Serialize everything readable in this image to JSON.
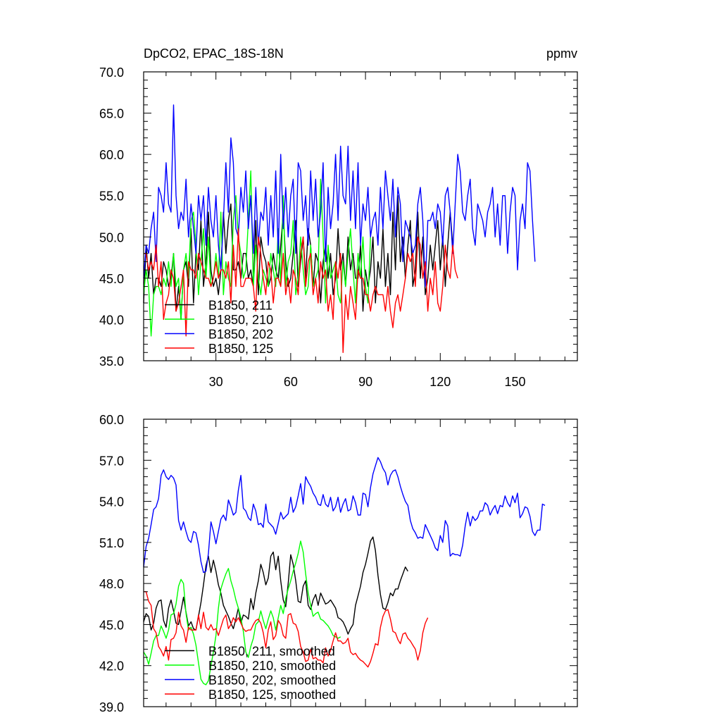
{
  "chart_data": [
    {
      "type": "line",
      "title_left": "DpCO2, EPAC_18S-18N",
      "title_right": "ppmv",
      "xlabel": "",
      "ylabel": "",
      "xlim": [
        1,
        175
      ],
      "ylim": [
        35,
        70
      ],
      "x_ticks": [
        30,
        60,
        90,
        120,
        150
      ],
      "x_tick_labels": [
        "30",
        "60",
        "90",
        "120",
        "150"
      ],
      "y_ticks": [
        35,
        40,
        45,
        50,
        55,
        60,
        65,
        70
      ],
      "y_tick_labels": [
        "35.0",
        "40.0",
        "45.0",
        "50.0",
        "55.0",
        "60.0",
        "65.0",
        "70.0"
      ],
      "legend_location": "lower-left",
      "series": [
        {
          "name": "B1850, 211",
          "color": "#000000",
          "x_start": 1,
          "values": [
            42,
            49,
            45,
            48,
            43,
            45,
            45,
            44,
            47,
            46,
            44,
            45,
            48,
            41,
            44,
            40,
            46,
            47,
            44,
            51,
            42,
            48,
            46,
            52,
            44,
            47,
            53,
            46,
            44,
            45,
            43,
            46,
            53,
            48,
            52,
            54,
            46,
            46,
            47,
            45,
            48,
            48,
            45,
            46,
            44,
            52,
            43,
            50,
            48,
            47,
            44,
            45,
            48,
            46,
            45,
            49,
            53,
            47,
            44,
            45,
            48,
            52,
            44,
            47,
            50,
            45,
            51,
            49,
            44,
            48,
            47,
            42,
            47,
            49,
            45,
            48,
            43,
            45,
            51,
            46,
            48,
            44,
            50,
            46,
            48,
            45,
            45,
            49,
            41,
            46,
            44,
            46,
            50,
            42,
            47,
            45,
            51,
            44,
            48,
            43,
            53,
            46,
            55,
            47,
            50,
            45,
            49,
            52,
            44,
            46,
            53,
            45,
            50,
            43,
            45,
            49,
            46,
            49,
            52,
            46,
            50,
            44,
            49,
            53,
            49
          ]
        },
        {
          "name": "B1850, 210",
          "color": "#00ff00",
          "x_start": 1,
          "values": [
            43,
            46,
            44,
            38,
            43,
            44,
            44,
            43,
            45,
            44,
            47,
            44,
            48,
            44,
            45,
            40,
            46,
            48,
            45,
            52,
            53,
            49,
            43,
            47,
            51,
            45,
            50,
            44,
            45,
            48,
            45,
            53,
            43,
            47,
            45,
            44,
            52,
            55,
            50,
            48,
            45,
            46,
            52,
            58,
            44,
            49,
            45,
            43,
            46,
            45,
            44,
            48,
            46,
            44,
            51,
            44,
            55,
            44,
            47,
            48,
            52,
            43,
            45,
            50,
            46,
            43,
            44,
            49,
            44,
            45,
            46,
            57,
            50,
            42,
            49,
            45,
            46,
            47,
            43,
            42,
            47,
            44,
            48,
            51,
            46,
            42,
            48,
            45,
            50,
            44,
            42,
            50
          ]
        },
        {
          "name": "B1850, 202",
          "color": "#0000ff",
          "x_start": 1,
          "values": [
            45,
            49,
            48,
            51,
            53,
            47,
            56,
            55,
            53,
            59,
            54,
            53,
            66,
            55,
            51,
            53,
            52,
            57,
            50,
            54,
            51,
            48,
            55,
            52,
            55,
            49,
            56,
            52,
            50,
            55,
            49,
            46,
            52,
            59,
            53,
            62,
            59,
            51,
            50,
            56,
            53,
            58,
            51,
            55,
            48,
            56,
            49,
            53,
            52,
            56,
            49,
            55,
            50,
            58,
            48,
            60,
            51,
            56,
            50,
            55,
            57,
            48,
            59,
            58,
            52,
            55,
            49,
            58,
            52,
            57,
            50,
            53,
            59,
            47,
            56,
            51,
            54,
            60,
            52,
            61,
            55,
            54,
            61,
            52,
            58,
            51,
            59,
            49,
            54,
            52,
            56,
            50,
            52,
            53,
            49,
            56,
            51,
            58,
            55,
            52,
            57,
            50,
            56,
            54,
            47,
            52,
            51,
            50,
            48,
            49,
            54,
            56,
            52,
            44,
            52,
            52,
            53,
            51,
            54,
            53,
            49,
            55,
            56,
            53,
            48,
            54,
            60,
            58,
            53,
            52,
            55,
            57,
            51,
            49,
            54,
            53,
            52,
            50,
            53,
            54,
            56,
            50,
            54,
            49,
            55,
            55,
            48,
            53,
            56,
            55,
            46,
            52,
            54,
            51,
            59,
            58,
            52,
            47
          ]
        },
        {
          "name": "B1850, 125",
          "color": "#ff0000",
          "x_start": 1,
          "values": [
            48,
            48,
            46,
            47,
            46,
            49,
            44,
            47,
            40,
            42,
            43,
            46,
            45,
            41,
            42,
            44,
            46,
            38,
            47,
            46,
            46,
            45,
            48,
            47,
            46,
            45,
            45,
            44,
            45,
            47,
            45,
            46,
            46,
            45,
            47,
            42,
            49,
            44,
            51,
            44,
            44,
            45,
            45,
            45,
            44,
            41,
            50,
            48,
            45,
            43,
            47,
            46,
            42,
            45,
            45,
            44,
            48,
            43,
            45,
            42,
            46,
            45,
            43,
            48,
            50,
            44,
            47,
            48,
            43,
            45,
            42,
            47,
            45,
            46,
            41,
            43,
            40,
            47,
            45,
            48,
            36,
            43,
            40,
            44,
            42,
            40,
            46,
            45,
            45,
            43,
            43,
            41,
            43,
            44,
            43,
            43,
            43,
            41,
            44,
            41,
            39,
            42,
            43,
            41,
            43,
            45,
            48,
            47,
            48,
            44,
            50,
            49,
            45,
            47,
            41,
            45,
            43,
            47,
            42,
            41,
            44,
            49,
            46,
            45,
            49,
            46,
            45
          ]
        }
      ]
    },
    {
      "type": "line",
      "title_left": "",
      "title_right": "",
      "xlabel": "",
      "ylabel": "",
      "xlim": [
        1,
        175
      ],
      "ylim": [
        39,
        60
      ],
      "x_ticks": [
        30,
        60,
        90,
        120,
        150
      ],
      "x_tick_labels": [],
      "y_ticks": [
        39,
        42,
        45,
        48,
        51,
        54,
        57,
        60
      ],
      "y_tick_labels": [
        "39.0",
        "42.0",
        "45.0",
        "48.0",
        "51.0",
        "54.0",
        "57.0",
        "60.0"
      ],
      "legend_location": "lower-left",
      "series": [
        {
          "name": "B1850, 211, smoothed",
          "color": "#000000",
          "x_start": 1,
          "values": [
            45.2,
            45.8,
            45.6,
            44.6,
            45.1,
            46.2,
            46.7,
            46.8,
            45.3,
            44.8,
            46.2,
            46.8,
            46.0,
            45.1,
            45.0,
            46.0,
            47.0,
            45.9,
            44.9,
            45.2,
            44.7,
            44.6,
            45.6,
            46.6,
            47.9,
            49.3,
            50.0,
            48.8,
            49.7,
            48.9,
            47.9,
            47.3,
            46.4,
            46.0,
            45.6,
            45.1,
            44.7,
            45.4,
            46.2,
            45.1,
            45.7,
            45.6,
            45.4,
            46.9,
            46.1,
            47.3,
            48.2,
            49.4,
            48.8,
            47.9,
            48.4,
            50.0,
            50.3,
            49.0,
            50.0,
            48.2,
            46.8,
            46.3,
            48.0,
            50.1,
            49.4,
            48.2,
            46.7,
            46.6,
            47.8,
            48.2,
            46.4,
            46.1,
            46.8,
            47.2,
            46.4,
            47.3,
            46.9,
            46.5,
            46.6,
            46.8,
            46.5,
            46.2,
            45.5,
            45.4,
            45.2,
            44.8,
            44.3,
            44.7,
            45.0,
            46.4,
            47.1,
            47.8,
            48.8,
            49.4,
            50.2,
            51.1,
            51.4,
            50.4,
            48.6,
            47.2,
            46.2,
            46.1,
            46.6,
            47.3,
            47.1,
            47.6,
            47.6,
            48.2,
            48.7,
            49.2,
            48.9
          ]
        },
        {
          "name": "B1850, 210, smoothed",
          "color": "#00ff00",
          "x_start": 1,
          "values": [
            43.0,
            42.7,
            42.1,
            42.9,
            43.8,
            44.2,
            44.2,
            44.9,
            44.5,
            44.0,
            44.6,
            45.7,
            45.8,
            46.5,
            47.8,
            48.3,
            48.0,
            45.8,
            44.6,
            44.8,
            44.3,
            43.5,
            42.2,
            41.0,
            40.7,
            40.6,
            40.9,
            42.0,
            43.0,
            44.2,
            46.2,
            47.6,
            48.2,
            48.7,
            49.1,
            48.2,
            47.6,
            46.8,
            46.2,
            45.5,
            44.5,
            43.0,
            42.6,
            43.4,
            44.0,
            45.0,
            45.2,
            46.0,
            45.3,
            44.7,
            45.4,
            46.0,
            45.5,
            44.6,
            45.5,
            46.4,
            45.8,
            46.9,
            47.6,
            48.2,
            48.9,
            49.5,
            50.2,
            51.1,
            50.3,
            48.7,
            47.3,
            46.4,
            45.6,
            45.8,
            45.9,
            45.4,
            45.3,
            45.1,
            44.9,
            44.6,
            44.2,
            44.1,
            44.0,
            44.1
          ]
        },
        {
          "name": "B1850, 202, smoothed",
          "color": "#0000ff",
          "x_start": 1,
          "values": [
            49.2,
            50.7,
            51.3,
            52.3,
            53.4,
            53.6,
            54.2,
            55.9,
            56.3,
            55.8,
            55.6,
            55.9,
            55.7,
            55.2,
            52.6,
            51.9,
            52.5,
            51.8,
            51.2,
            51.0,
            51.8,
            51.7,
            50.8,
            49.6,
            48.8,
            48.9,
            50.2,
            52.5,
            51.8,
            50.9,
            51.8,
            52.7,
            53.0,
            52.6,
            54.1,
            53.6,
            53.0,
            53.2,
            54.8,
            55.9,
            53.5,
            53.3,
            52.8,
            52.6,
            53.8,
            53.3,
            52.3,
            52.4,
            52.1,
            53.8,
            52.5,
            52.3,
            52.1,
            51.6,
            52.4,
            53.2,
            52.7,
            52.9,
            53.1,
            54.3,
            53.2,
            53.6,
            54.4,
            55.3,
            53.8,
            55.8,
            55.4,
            55.1,
            54.6,
            54.3,
            53.8,
            53.7,
            54.5,
            53.8,
            53.6,
            54.3,
            53.3,
            53.6,
            54.3,
            53.2,
            53.8,
            54.2,
            53.3,
            53.4,
            54.4,
            53.9,
            53.0,
            53.0,
            54.6,
            54.5,
            53.6,
            55.0,
            56.0,
            56.6,
            57.2,
            56.9,
            56.4,
            56.1,
            55.2,
            55.9,
            56.2,
            56.3,
            55.8,
            55.1,
            54.5,
            54.0,
            53.7,
            52.6,
            52.0,
            51.7,
            51.3,
            51.4,
            51.3,
            52.3,
            51.9,
            51.5,
            51.1,
            50.6,
            50.4,
            51.5,
            51.0,
            52.6,
            52.2,
            50.0,
            50.2,
            50.1,
            50.1,
            50.0,
            50.8,
            52.2,
            53.2,
            52.2,
            52.9,
            52.6,
            52.8,
            53.3,
            53.3,
            53.9,
            53.7,
            53.0,
            53.4,
            53.7,
            53.1,
            53.7,
            53.6,
            54.4,
            53.9,
            53.6,
            54.4,
            53.9,
            54.6,
            52.8,
            53.1,
            53.6,
            53.5,
            52.9,
            51.8,
            51.5,
            51.9,
            51.9,
            53.8,
            53.7
          ]
        },
        {
          "name": "B1850, 125, smoothed",
          "color": "#ff0000",
          "x_start": 1,
          "values": [
            47.4,
            47.4,
            46.7,
            46.4,
            44.7,
            44.4,
            43.4,
            43.1,
            42.7,
            43.4,
            42.4,
            43.9,
            44.0,
            44.4,
            45.9,
            44.9,
            44.6,
            43.7,
            44.8,
            44.6,
            44.6,
            44.6,
            45.7,
            44.7,
            45.9,
            44.8,
            44.6,
            45.0,
            44.6,
            44.7,
            44.2,
            44.8,
            45.4,
            45.7,
            44.7,
            45.0,
            45.5,
            45.2,
            45.5,
            45.1,
            44.7,
            44.5,
            44.6,
            44.6,
            45.0,
            45.3,
            45.4,
            45.1,
            44.4,
            43.3,
            44.6,
            45.2,
            43.9,
            44.2,
            45.3,
            45.0,
            44.2,
            44.0,
            45.7,
            45.8,
            45.1,
            45.0,
            44.5,
            43.4,
            43.0,
            42.3,
            42.4,
            43.2,
            42.5,
            42.6,
            42.4,
            42.4,
            42.2,
            43.3,
            42.7,
            43.1,
            43.8,
            44.4,
            43.8,
            43.8,
            43.6,
            43.7,
            44.0,
            43.0,
            42.8,
            42.9,
            42.6,
            42.4,
            42.3,
            42.1,
            41.9,
            42.3,
            42.9,
            43.6,
            43.5,
            44.8,
            45.6,
            46.0,
            46.1,
            45.4,
            44.5,
            44.4,
            43.9,
            43.6,
            44.3,
            44.4,
            44.0,
            43.8,
            43.5,
            43.2,
            42.4,
            43.1,
            44.4,
            45.1,
            45.5
          ]
        }
      ]
    }
  ]
}
